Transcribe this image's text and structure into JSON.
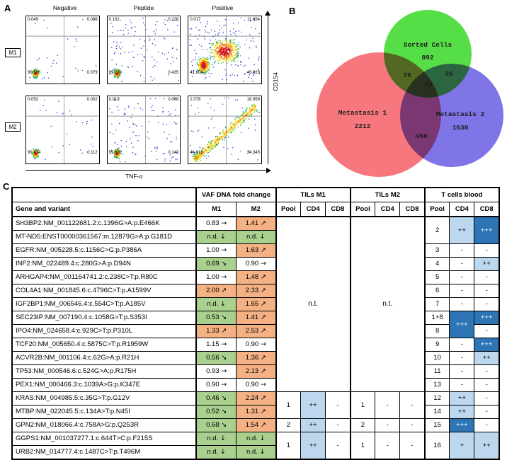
{
  "panel_a": {
    "label": "A",
    "col_headers": [
      "Negative",
      "Peptide",
      "Positive"
    ],
    "row_labels": [
      "M1",
      "M2"
    ],
    "x_axis_label": "TNF-α",
    "y_axis_label": "CD154",
    "plots": [
      {
        "row": "M1",
        "condition": "Negative",
        "pattern": "neg",
        "ul": "0.049",
        "ur": "0.006",
        "ll": "99.866",
        "lr": "0.079"
      },
      {
        "row": "M1",
        "condition": "Peptide",
        "pattern": "pep",
        "ul": "0.102",
        "ur": "0.226",
        "ll": "99.238",
        "lr": "0.435"
      },
      {
        "row": "M1",
        "condition": "Positive",
        "pattern": "pos1",
        "ul": "0.017",
        "ur": "11.454",
        "ll": "41.609",
        "lr": "46.920"
      },
      {
        "row": "M2",
        "condition": "Negative",
        "pattern": "neg",
        "ul": "0.052",
        "ur": "0.002",
        "ll": "99.834",
        "lr": "0.112"
      },
      {
        "row": "M2",
        "condition": "Peptide",
        "pattern": "pep",
        "ul": "0.019",
        "ur": "0.008",
        "ll": "99.832",
        "lr": "0.143"
      },
      {
        "row": "M2",
        "condition": "Positive",
        "pattern": "pos2",
        "ul": "2.078",
        "ur": "18.959",
        "ll": "44.618",
        "lr": "34.345"
      }
    ]
  },
  "panel_b": {
    "label": "B",
    "sets": [
      {
        "name": "Sorted Cells",
        "count": "892",
        "color": "#3fd92e"
      },
      {
        "name": "Metastasis 1",
        "count": "2212",
        "color": "#f4555c"
      },
      {
        "name": "Metastasis 2",
        "count": "1630",
        "color": "#5b4ee0"
      }
    ],
    "overlaps": {
      "sorted_m1": "78",
      "sorted_m2": "36",
      "all": "44",
      "m1_m2": "450"
    }
  },
  "panel_c": {
    "label": "C",
    "gene_header": "Gene and variant",
    "groups": [
      "VAF DNA fold change",
      "TILs M1",
      "TILs M2",
      "T cells blood"
    ],
    "vaf_cols": [
      "M1",
      "M2"
    ],
    "cell_cols": [
      "Pool",
      "CD4",
      "CD8"
    ],
    "not_tested": "n.t.",
    "colors": {
      "increase": "#f4b183",
      "decrease": "#a9d08e",
      "weak_response": "#bdd7ee",
      "strong_response": "#2e75b6"
    },
    "rows": [
      {
        "gene": "SH3BP2:NM_001122681.2:c.1396G>A:p.E466K",
        "m1": {
          "v": "0.83",
          "a": "→",
          "c": ""
        },
        "m2": {
          "v": "1.41",
          "a": "↗",
          "c": "o"
        },
        "t1": "nt",
        "t2": "nt",
        "bl": [
          {
            "t": "2",
            "rs": 2
          },
          {
            "t": "++",
            "c": "lb",
            "rs": 2
          },
          {
            "t": "+++",
            "c": "db",
            "rs": 2
          }
        ]
      },
      {
        "gene": "MT-ND5:ENST00000361567:m.12879G>A:p.G181D",
        "m1": {
          "v": "n.d.",
          "a": "↓",
          "c": "g"
        },
        "m2": {
          "v": "n.d.",
          "a": "↓",
          "c": "g"
        },
        "t1": null,
        "t2": null,
        "bl": [
          null,
          null,
          null
        ]
      },
      {
        "gene": "EGFR:NM_005228.5:c.1156C>G:p.P386A",
        "m1": {
          "v": "1.00",
          "a": "→",
          "c": ""
        },
        "m2": {
          "v": "1.63",
          "a": "↗",
          "c": "o"
        },
        "t1": null,
        "t2": null,
        "bl": [
          {
            "t": "3"
          },
          {
            "t": "-"
          },
          {
            "t": "-"
          }
        ]
      },
      {
        "gene": "INF2:NM_022489.4:c.280G>A:p.D94N",
        "m1": {
          "v": "0.69",
          "a": "↘",
          "c": "g"
        },
        "m2": {
          "v": "0.90",
          "a": "→",
          "c": ""
        },
        "t1": null,
        "t2": null,
        "bl": [
          {
            "t": "4"
          },
          {
            "t": "-"
          },
          {
            "t": "++",
            "c": "lb"
          }
        ]
      },
      {
        "gene": "ARHGAP4:NM_001164741.2:c.238C>T:p.R80C",
        "m1": {
          "v": "1.00",
          "a": "→",
          "c": ""
        },
        "m2": {
          "v": "1.48",
          "a": "↗",
          "c": "o"
        },
        "t1": null,
        "t2": null,
        "bl": [
          {
            "t": "5"
          },
          {
            "t": "-"
          },
          {
            "t": "-"
          }
        ]
      },
      {
        "gene": "COL4A1:NM_001845.6:c.4796C>T:p.A1599V",
        "m1": {
          "v": "2.00",
          "a": "↗",
          "c": "o"
        },
        "m2": {
          "v": "2.33",
          "a": "↗",
          "c": "o"
        },
        "t1": null,
        "t2": null,
        "bl": [
          {
            "t": "6"
          },
          {
            "t": "-"
          },
          {
            "t": "-"
          }
        ]
      },
      {
        "gene": "IGF2BP1:NM_006546.4:c.554C>T:p.A185V",
        "m1": {
          "v": "n.d.",
          "a": "↓",
          "c": "g"
        },
        "m2": {
          "v": "1.65",
          "a": "↗",
          "c": "o"
        },
        "t1": null,
        "t2": null,
        "bl": [
          {
            "t": "7"
          },
          {
            "t": "-"
          },
          {
            "t": "-"
          }
        ]
      },
      {
        "gene": "SEC23IP:NM_007190.4:c.1058G>T:p.S353I",
        "m1": {
          "v": "0.53",
          "a": "↘",
          "c": "g"
        },
        "m2": {
          "v": "1.41",
          "a": "↗",
          "c": "o"
        },
        "t1": null,
        "t2": null,
        "bl": [
          {
            "t": "1+8"
          },
          {
            "t": "+++",
            "c": "db",
            "rs": 2
          },
          {
            "t": "+++",
            "c": "db"
          }
        ]
      },
      {
        "gene": "IPO4:NM_024658.4:c.929C>T:p.P310L",
        "m1": {
          "v": "1.33",
          "a": "↗",
          "c": "o"
        },
        "m2": {
          "v": "2.53",
          "a": "↗",
          "c": "o"
        },
        "t1": null,
        "t2": null,
        "bl": [
          {
            "t": "8"
          },
          null,
          {
            "t": "-"
          }
        ]
      },
      {
        "gene": "TCF20:NM_005650.4:c.5875C>T:p.R1959W",
        "m1": {
          "v": "1.15",
          "a": "→",
          "c": ""
        },
        "m2": {
          "v": "0.90",
          "a": "→",
          "c": ""
        },
        "t1": null,
        "t2": null,
        "bl": [
          {
            "t": "9"
          },
          {
            "t": "-"
          },
          {
            "t": "+++",
            "c": "db"
          }
        ]
      },
      {
        "gene": "ACVR2B:NM_001106.4:c.62G>A:p.R21H",
        "m1": {
          "v": "0.56",
          "a": "↘",
          "c": "g"
        },
        "m2": {
          "v": "1.36",
          "a": "↗",
          "c": "o"
        },
        "t1": null,
        "t2": null,
        "bl": [
          {
            "t": "10"
          },
          {
            "t": "-"
          },
          {
            "t": "++",
            "c": "lb"
          }
        ]
      },
      {
        "gene": "TP53:NM_000546.6:c.524G>A:p.R175H",
        "m1": {
          "v": "0.93",
          "a": "→",
          "c": ""
        },
        "m2": {
          "v": "2.13",
          "a": "↗",
          "c": "o"
        },
        "t1": null,
        "t2": null,
        "bl": [
          {
            "t": "11"
          },
          {
            "t": "-"
          },
          {
            "t": "-"
          }
        ]
      },
      {
        "gene": "PEX1:NM_000466.3:c.1039A>G:p.K347E",
        "m1": {
          "v": "0.90",
          "a": "→",
          "c": ""
        },
        "m2": {
          "v": "0.90",
          "a": "→",
          "c": ""
        },
        "t1": null,
        "t2": null,
        "bl": [
          {
            "t": "13"
          },
          {
            "t": "-"
          },
          {
            "t": "-"
          }
        ]
      },
      {
        "gene": "KRAS:NM_004985.5:c.35G>T:p.G12V",
        "m1": {
          "v": "0.46",
          "a": "↘",
          "c": "g"
        },
        "m2": {
          "v": "2.24",
          "a": "↗",
          "c": "o"
        },
        "t1": [
          {
            "t": "1",
            "rs": 2
          },
          {
            "t": "++",
            "c": "lb",
            "rs": 2
          },
          {
            "t": "-",
            "rs": 2
          }
        ],
        "t2": [
          {
            "t": "1",
            "rs": 2
          },
          {
            "t": "-",
            "rs": 2
          },
          {
            "t": "-",
            "rs": 2
          }
        ],
        "bl": [
          {
            "t": "12"
          },
          {
            "t": "++",
            "c": "lb"
          },
          {
            "t": "-"
          }
        ]
      },
      {
        "gene": "MTBP:NM_022045.5:c.134A>T:p.N45I",
        "m1": {
          "v": "0.52",
          "a": "↘",
          "c": "g"
        },
        "m2": {
          "v": "1.31",
          "a": "↗",
          "c": "o"
        },
        "t1": [
          null,
          null,
          null
        ],
        "t2": [
          null,
          null,
          null
        ],
        "bl": [
          {
            "t": "14"
          },
          {
            "t": "++",
            "c": "lb"
          },
          {
            "t": "-"
          }
        ]
      },
      {
        "gene": "GPN2:NM_018066.4:c.758A>G:p.Q253R",
        "m1": {
          "v": "0.68",
          "a": "↘",
          "c": "g"
        },
        "m2": {
          "v": "1.54",
          "a": "↗",
          "c": "o"
        },
        "t1": [
          {
            "t": "2"
          },
          {
            "t": "++",
            "c": "lb"
          },
          {
            "t": "-"
          }
        ],
        "t2": [
          {
            "t": "2"
          },
          {
            "t": "-"
          },
          {
            "t": "-"
          }
        ],
        "bl": [
          {
            "t": "15"
          },
          {
            "t": "+++",
            "c": "db"
          },
          {
            "t": "-"
          }
        ]
      },
      {
        "gene": "GGPS1:NM_001037277.1:c.644T>C:p.F215S",
        "m1": {
          "v": "n.d.",
          "a": "↓",
          "c": "g"
        },
        "m2": {
          "v": "n.d.",
          "a": "↓",
          "c": "g"
        },
        "t1": [
          {
            "t": "1",
            "rs": 2
          },
          {
            "t": "++",
            "c": "lb",
            "rs": 2
          },
          {
            "t": "-",
            "rs": 2
          }
        ],
        "t2": [
          {
            "t": "1",
            "rs": 2
          },
          {
            "t": "-",
            "rs": 2
          },
          {
            "t": "-",
            "rs": 2
          }
        ],
        "bl": [
          {
            "t": "16",
            "rs": 2
          },
          {
            "t": "+",
            "c": "lb",
            "rs": 2
          },
          {
            "t": "++",
            "c": "lb",
            "rs": 2
          }
        ]
      },
      {
        "gene": "URB2:NM_014777.4:c.1487C>T:p.T496M",
        "m1": {
          "v": "n.d.",
          "a": "↓",
          "c": "g"
        },
        "m2": {
          "v": "n.d.",
          "a": "↓",
          "c": "g"
        },
        "t1": [
          null,
          null,
          null
        ],
        "t2": [
          null,
          null,
          null
        ],
        "bl": [
          null,
          null,
          null
        ]
      }
    ]
  }
}
